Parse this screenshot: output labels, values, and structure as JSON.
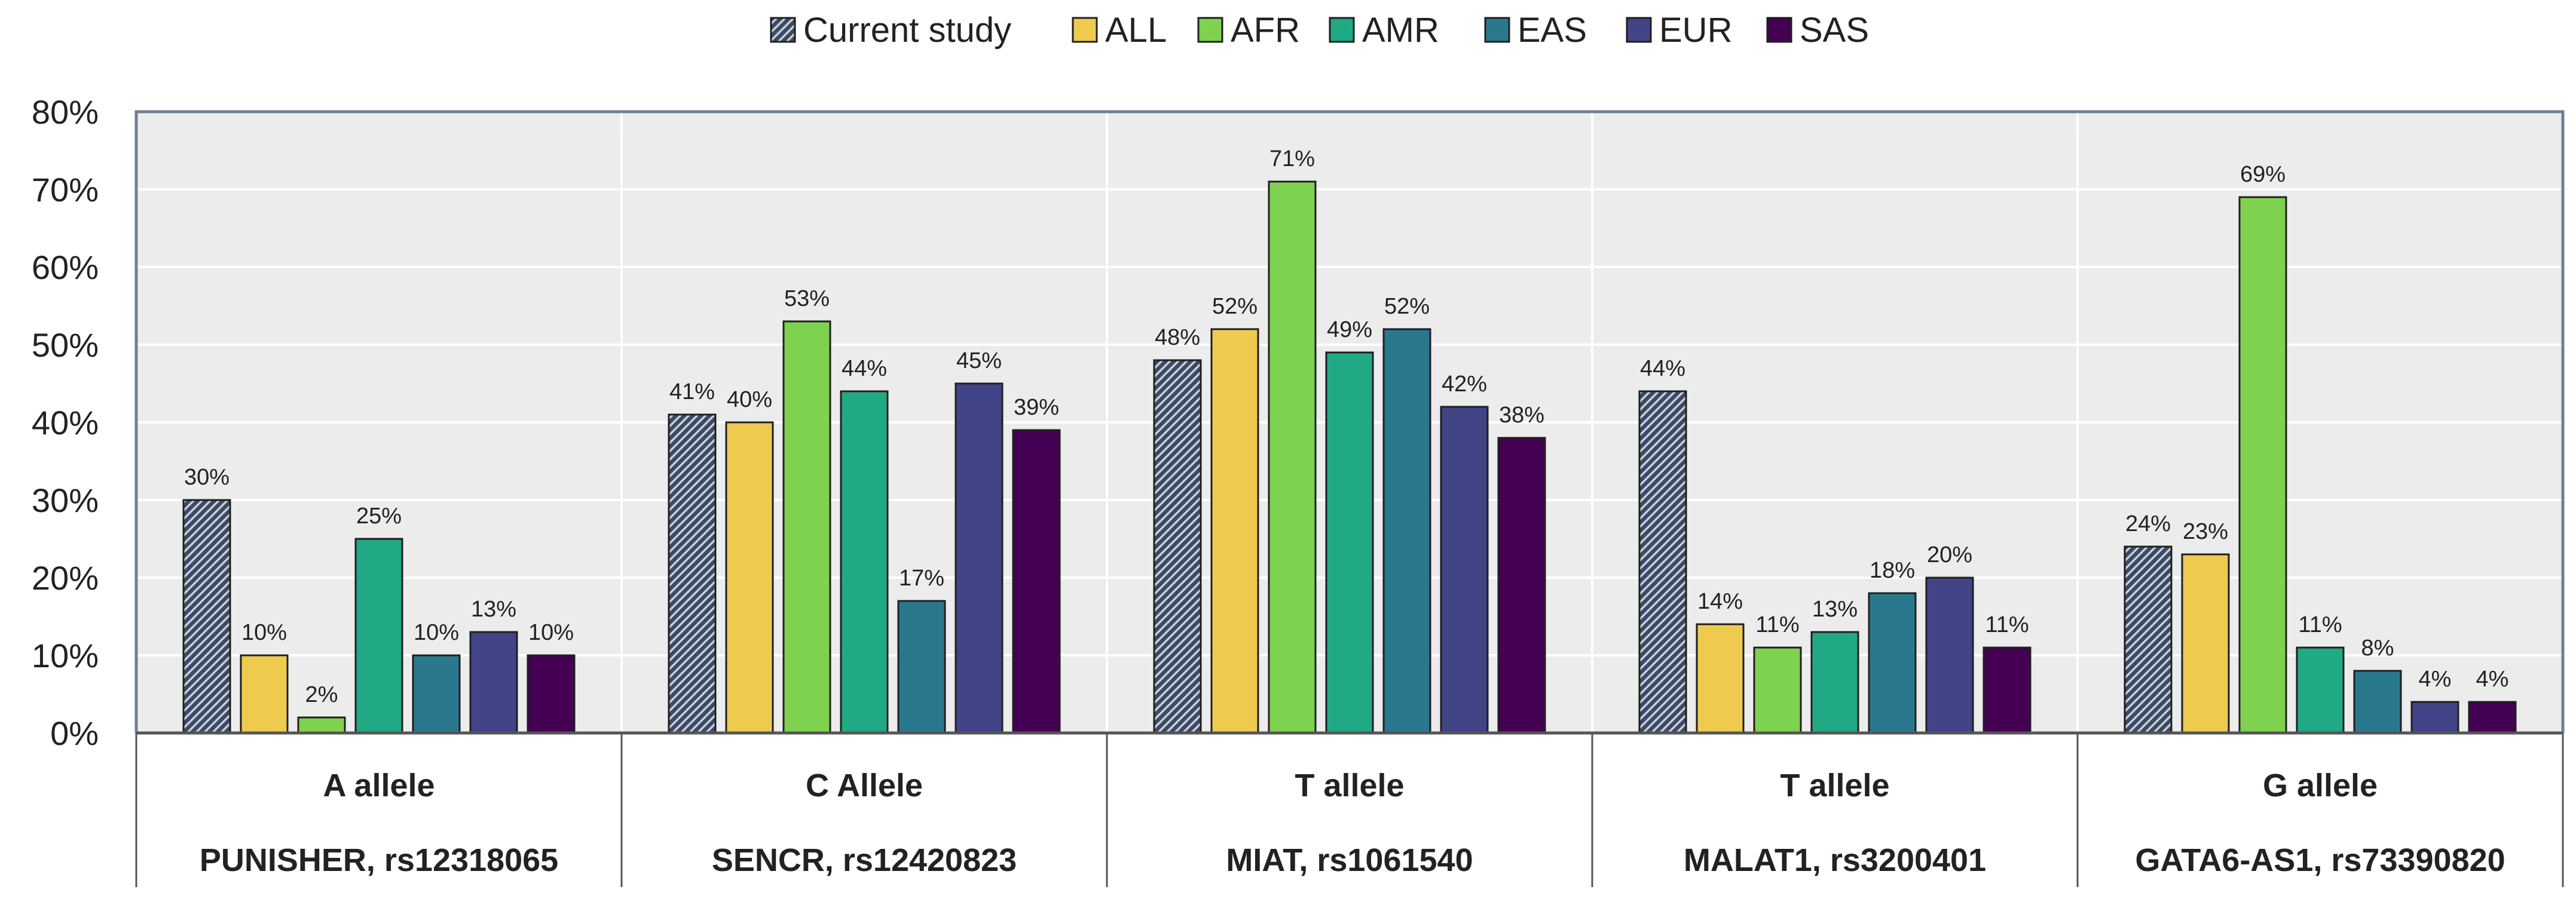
{
  "chart_data": {
    "type": "bar",
    "title": "",
    "xlabel": "",
    "ylabel": "",
    "ylim": [
      0,
      80
    ],
    "yticks": [
      "0%",
      "10%",
      "20%",
      "30%",
      "40%",
      "50%",
      "60%",
      "70%",
      "80%"
    ],
    "grid": true,
    "legend_position": "top-center",
    "categories": [
      {
        "allele": "A allele",
        "label": "PUNISHER, rs12318065"
      },
      {
        "allele": "C Allele",
        "label": "SENCR, rs12420823"
      },
      {
        "allele": "T allele",
        "label": "MIAT, rs1061540"
      },
      {
        "allele": "T allele",
        "label": "MALAT1, rs3200401"
      },
      {
        "allele": "G allele",
        "label": "GATA6-AS1, rs73390820"
      }
    ],
    "series": [
      {
        "name": "Current study",
        "color": "#3d4a63",
        "pattern": "hatched",
        "values": [
          30,
          41,
          48,
          44,
          24
        ],
        "labels": [
          "30%",
          "41%",
          "48%",
          "44%",
          "24%"
        ]
      },
      {
        "name": "ALL",
        "color": "#eecb4f",
        "values": [
          10,
          40,
          52,
          14,
          23
        ],
        "labels": [
          "10%",
          "40%",
          "52%",
          "14%",
          "23%"
        ]
      },
      {
        "name": "AFR",
        "color": "#7fd24f",
        "values": [
          2,
          53,
          71,
          11,
          69
        ],
        "labels": [
          "2%",
          "53%",
          "71%",
          "11%",
          "69%"
        ]
      },
      {
        "name": "AMR",
        "color": "#20a984",
        "values": [
          25,
          44,
          49,
          13,
          11
        ],
        "labels": [
          "25%",
          "44%",
          "49%",
          "13%",
          "11%"
        ]
      },
      {
        "name": "EAS",
        "color": "#2a788e",
        "values": [
          10,
          17,
          52,
          18,
          8
        ],
        "labels": [
          "10%",
          "17%",
          "52%",
          "18%",
          "8%"
        ]
      },
      {
        "name": "EUR",
        "color": "#414487",
        "values": [
          13,
          45,
          42,
          20,
          4
        ],
        "labels": [
          "13%",
          "45%",
          "42%",
          "20%",
          "4%"
        ]
      },
      {
        "name": "SAS",
        "color": "#440154",
        "values": [
          10,
          39,
          38,
          11,
          4
        ],
        "labels": [
          "10%",
          "39%",
          "38%",
          "11%",
          "4%"
        ]
      }
    ]
  }
}
